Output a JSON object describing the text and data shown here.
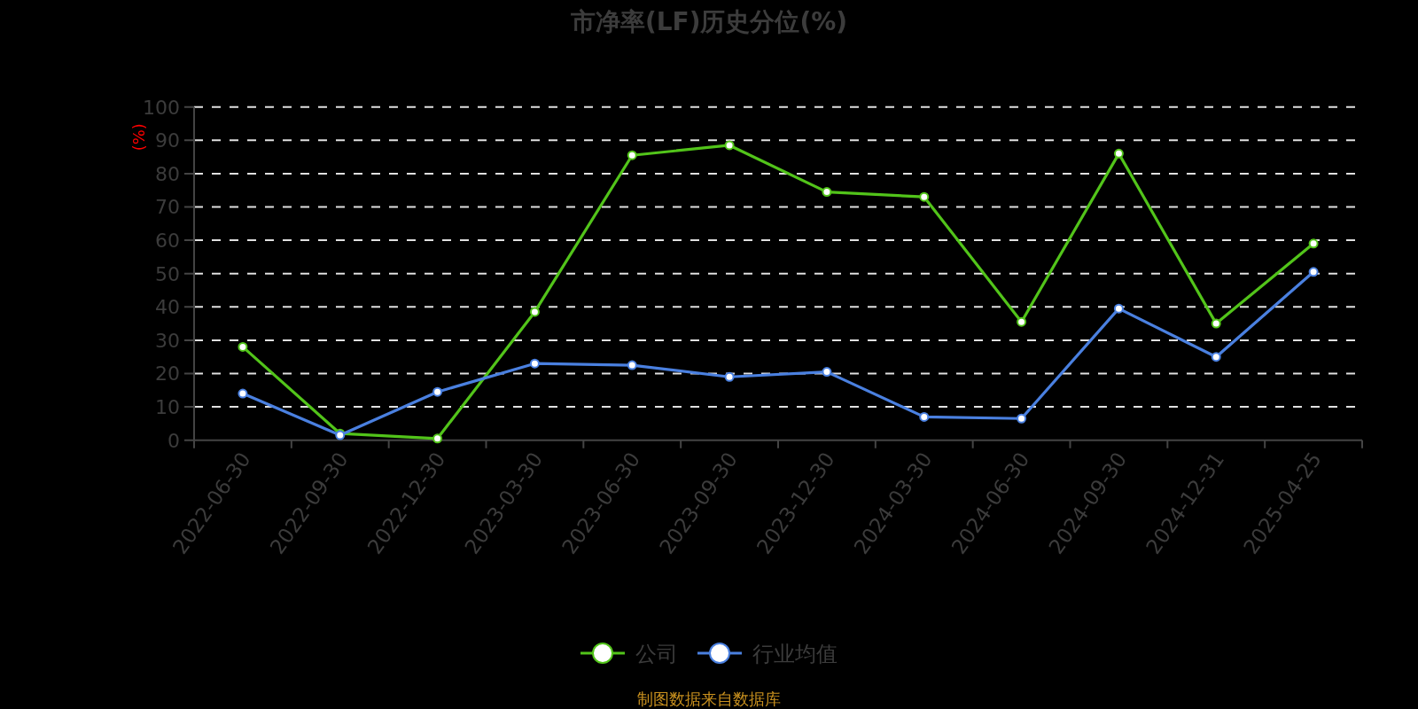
{
  "chart_data": {
    "type": "line",
    "title": "市净率(LF)历史分位(%)",
    "ylabel": "(%)",
    "categories": [
      "2022-06-30",
      "2022-09-30",
      "2022-12-30",
      "2023-03-30",
      "2023-06-30",
      "2023-09-30",
      "2023-12-30",
      "2024-03-30",
      "2024-06-30",
      "2024-09-30",
      "2024-12-31",
      "2025-04-25"
    ],
    "series": [
      {
        "name": "公司",
        "color": "#52c41a",
        "values": [
          28,
          2,
          0.5,
          38.5,
          85.5,
          88.5,
          74.5,
          73,
          35.5,
          86,
          35,
          59
        ]
      },
      {
        "name": "行业均值",
        "color": "#4a80e0",
        "values": [
          14,
          1.5,
          14.5,
          23,
          22.5,
          19,
          20.5,
          7,
          6.5,
          39.5,
          25,
          50.5
        ]
      }
    ],
    "ylim": [
      0,
      100
    ],
    "yticks": [
      0,
      10,
      20,
      30,
      40,
      50,
      60,
      70,
      80,
      90,
      100
    ],
    "grid": "y",
    "legend": "bottom",
    "marker": "circle",
    "line_style": "solid",
    "annotations": [
      "制图数据来自数据库"
    ]
  }
}
